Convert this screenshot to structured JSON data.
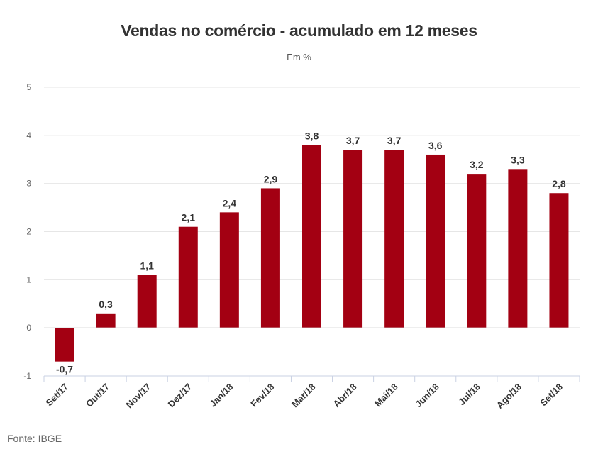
{
  "chart_data": {
    "type": "bar",
    "title": "Vendas no comércio - acumulado em 12 meses",
    "subtitle": "Em %",
    "categories": [
      "Set/17",
      "Out/17",
      "Nov/17",
      "Dez/17",
      "Jan/18",
      "Fev/18",
      "Mar/18",
      "Abr/18",
      "Mai/18",
      "Jun/18",
      "Jul/18",
      "Ago/18",
      "Set/18"
    ],
    "values": [
      -0.7,
      0.3,
      1.1,
      2.1,
      2.4,
      2.9,
      3.8,
      3.7,
      3.7,
      3.6,
      3.2,
      3.3,
      2.8
    ],
    "data_labels": [
      "-0,7",
      "0,3",
      "1,1",
      "2,1",
      "2,4",
      "2,9",
      "3,8",
      "3,7",
      "3,7",
      "3,6",
      "3,2",
      "3,3",
      "2,8"
    ],
    "ylim": [
      -1,
      5
    ],
    "yticks": [
      5,
      4,
      3,
      2,
      1,
      0,
      -1
    ],
    "xlabel": "",
    "ylabel": "",
    "grid": true,
    "legend": "none",
    "bar_color": "#a30012",
    "source": "Fonte: IBGE"
  }
}
